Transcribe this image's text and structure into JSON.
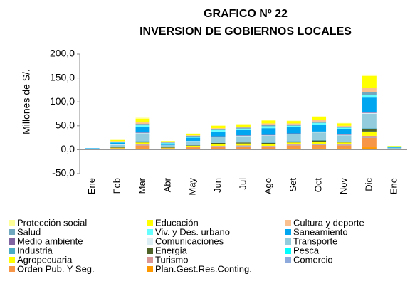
{
  "chart_data": {
    "type": "stacked_bar",
    "title": "GRAFICO Nº 22",
    "subtitle": "INVERSION DE GOBIERNOS LOCALES",
    "y_label": "Millones de S/.",
    "categories": [
      "Ene",
      "Feb",
      "Mar",
      "Abr",
      "May",
      "Jun",
      "Jul",
      "Ago",
      "Set",
      "Oct",
      "Nov",
      "Dic",
      "Ene"
    ],
    "ylim": [
      -50,
      200
    ],
    "yticks": [
      {
        "value": -50,
        "label": "-50,0"
      },
      {
        "value": 0,
        "label": "0,0"
      },
      {
        "value": 50,
        "label": "50,0"
      },
      {
        "value": 100,
        "label": "100,0"
      },
      {
        "value": 150,
        "label": "150,0"
      },
      {
        "value": 200,
        "label": "200,0"
      }
    ],
    "grid": false,
    "series": [
      {
        "name": "Protección social",
        "color": "#FFFF99",
        "values": [
          0,
          1,
          2,
          0,
          1,
          1,
          1,
          2,
          1,
          2,
          1,
          3,
          0
        ]
      },
      {
        "name": "Educación",
        "color": "#FFFF00",
        "values": [
          0,
          2,
          8,
          2,
          3,
          5,
          5,
          6,
          5,
          6,
          5,
          25,
          1
        ]
      },
      {
        "name": "Cultura y deporte",
        "color": "#FAC090",
        "values": [
          0,
          1,
          3,
          1,
          1,
          2,
          2,
          3,
          2,
          3,
          2,
          8,
          0
        ]
      },
      {
        "name": "Salud",
        "color": "#6FA8BF",
        "values": [
          0,
          1,
          3,
          1,
          2,
          2,
          2,
          3,
          3,
          3,
          2,
          6,
          0
        ]
      },
      {
        "name": "Viv. y Des. urbano",
        "color": "#66FFFF",
        "values": [
          0,
          1,
          3,
          1,
          2,
          3,
          3,
          4,
          3,
          4,
          3,
          6,
          1
        ]
      },
      {
        "name": "Saneamiento",
        "color": "#00A6F0",
        "values": [
          1,
          4,
          12,
          3,
          7,
          10,
          11,
          14,
          13,
          14,
          11,
          30,
          2
        ]
      },
      {
        "name": "Medio ambiente",
        "color": "#8064A2",
        "values": [
          0,
          0,
          1,
          0,
          0,
          1,
          1,
          1,
          1,
          1,
          1,
          2,
          0
        ]
      },
      {
        "name": "Comunicaciones",
        "color": "#DAEEF3",
        "values": [
          0,
          1,
          1,
          0,
          1,
          1,
          1,
          1,
          1,
          1,
          1,
          2,
          0
        ]
      },
      {
        "name": "Transporte",
        "color": "#93CDDD",
        "values": [
          1,
          5,
          16,
          5,
          8,
          12,
          13,
          14,
          14,
          16,
          13,
          30,
          2
        ]
      },
      {
        "name": "Industria",
        "color": "#4BACC6",
        "values": [
          0,
          0,
          1,
          0,
          0,
          0,
          0,
          1,
          1,
          1,
          0,
          2,
          0
        ]
      },
      {
        "name": "Energia",
        "color": "#4F6228",
        "values": [
          0,
          1,
          2,
          1,
          1,
          2,
          2,
          2,
          2,
          2,
          2,
          5,
          0
        ]
      },
      {
        "name": "Pesca",
        "color": "#00FFFF",
        "values": [
          0,
          0,
          0,
          0,
          0,
          0,
          0,
          0,
          0,
          0,
          0,
          1,
          0
        ]
      },
      {
        "name": "Agropecuaria",
        "color": "#FFFF00",
        "values": [
          0,
          1,
          4,
          1,
          2,
          4,
          4,
          4,
          4,
          5,
          4,
          8,
          1
        ]
      },
      {
        "name": "Turismo",
        "color": "#D99694",
        "values": [
          0,
          0,
          1,
          0,
          0,
          1,
          1,
          1,
          1,
          1,
          1,
          2,
          0
        ]
      },
      {
        "name": "Comercio",
        "color": "#8EA9DB",
        "values": [
          0,
          0,
          1,
          0,
          1,
          1,
          1,
          1,
          1,
          1,
          1,
          2,
          0
        ]
      },
      {
        "name": "Orden Pub. Y Seg.",
        "color": "#F79646",
        "values": [
          1,
          2,
          6,
          2,
          3,
          4,
          5,
          4,
          6,
          7,
          6,
          20,
          1
        ]
      },
      {
        "name": "Plan.Gest.Res.Conting.",
        "color": "#FF9900",
        "values": [
          0,
          1,
          3,
          1,
          2,
          2,
          2,
          2,
          3,
          3,
          3,
          5,
          0
        ]
      }
    ]
  }
}
